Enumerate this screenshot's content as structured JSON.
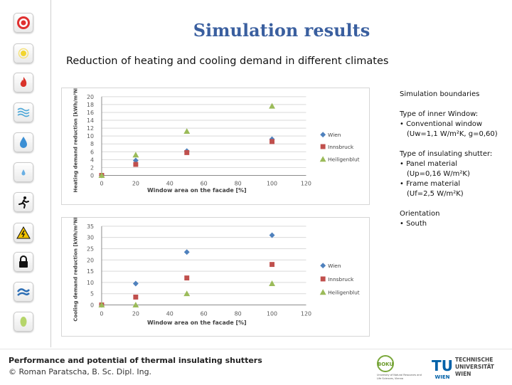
{
  "title": "Simulation results",
  "subtitle": "Reduction of heating and cooling demand in different climates",
  "sidebar_icons": [
    "target-icon",
    "sun-icon",
    "fire-icon",
    "wind-icon",
    "water-drop-icon",
    "small-drop-icon",
    "running-person-icon",
    "warning-icon",
    "padlock-icon",
    "storm-icon",
    "leaf-icon"
  ],
  "info": {
    "heading": "Simulation boundaries",
    "window_type_label": "Type of inner Window:",
    "window_type_line1": "• Conventional window",
    "window_type_line2": "(Uw=1,1 W/m²K, g=0,60)",
    "shutter_type_label": "Type of insulating shutter:",
    "panel_material": "• Panel material",
    "panel_value": "(Up=0,16 W/m²K)",
    "frame_material": "• Frame material",
    "frame_value": "(Uf=2,5 W/m²K)",
    "orientation_label": "Orientation",
    "orientation_value": "• South"
  },
  "footer": {
    "title": "Performance and potential of thermal insulating shutters",
    "author": "© Roman Paratscha, B. Sc. Dipl. Ing.",
    "boku_label": "BOKU",
    "boku_caption": "University of Natural Resources and Life Sciences, Vienna",
    "tu_label": "TU",
    "wien_label": "WIEN",
    "tu_name_line1": "TECHNISCHE",
    "tu_name_line2": "UNIVERSITÄT",
    "tu_name_line3": "WIEN"
  },
  "chart_data": [
    {
      "type": "scatter",
      "ylabel": "Heating demand reduction [kWh/m²NRF]",
      "xlabel": "Window area on the facade [%]",
      "xlim": [
        0,
        120
      ],
      "xticks": [
        0,
        20,
        40,
        60,
        80,
        100,
        120
      ],
      "ylim": [
        0,
        20
      ],
      "yticks": [
        0,
        2,
        4,
        6,
        8,
        10,
        12,
        14,
        16,
        18,
        20
      ],
      "grid": true,
      "legend": "right",
      "series": [
        {
          "name": "Wien",
          "color": "#4f81bd",
          "marker": "diamond",
          "x": [
            0,
            20,
            50,
            100
          ],
          "y": [
            0,
            3.8,
            6.2,
            9.2
          ]
        },
        {
          "name": "Innsbruck",
          "color": "#c0504d",
          "marker": "square",
          "x": [
            0,
            20,
            50,
            100
          ],
          "y": [
            0,
            2.8,
            5.8,
            8.6
          ]
        },
        {
          "name": "Heiligenblut",
          "color": "#9bbb59",
          "marker": "triangle",
          "x": [
            0,
            20,
            50,
            100
          ],
          "y": [
            0,
            5.2,
            11.2,
            17.6
          ]
        }
      ]
    },
    {
      "type": "scatter",
      "ylabel": "Cooling demand reduction [kWh/m²NRF]",
      "xlabel": "Window area on the facade [%]",
      "xlim": [
        0,
        120
      ],
      "xticks": [
        0,
        20,
        40,
        60,
        80,
        100,
        120
      ],
      "ylim": [
        0,
        35
      ],
      "yticks": [
        0,
        5,
        10,
        15,
        20,
        25,
        30,
        35
      ],
      "grid": true,
      "legend": "right",
      "series": [
        {
          "name": "Wien",
          "color": "#4f81bd",
          "marker": "diamond",
          "x": [
            0,
            20,
            50,
            100
          ],
          "y": [
            0,
            9.5,
            23.5,
            31
          ]
        },
        {
          "name": "Innsbruck",
          "color": "#c0504d",
          "marker": "square",
          "x": [
            0,
            20,
            50,
            100
          ],
          "y": [
            0,
            3.5,
            12,
            18
          ]
        },
        {
          "name": "Heiligenblut",
          "color": "#9bbb59",
          "marker": "triangle",
          "x": [
            0,
            20,
            50,
            100
          ],
          "y": [
            0,
            0,
            5,
            9.5
          ]
        }
      ]
    }
  ]
}
